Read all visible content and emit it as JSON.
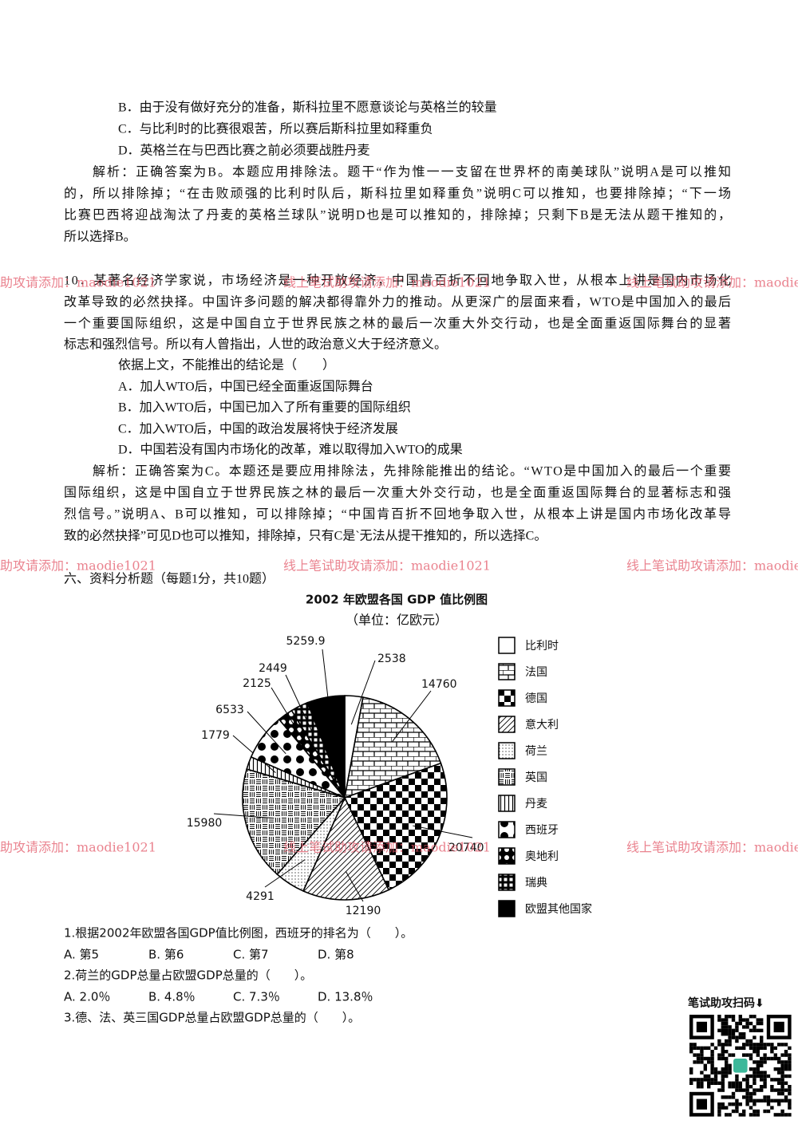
{
  "body": [
    "B．由于没有做好充分的准备，斯科拉里不愿意谈论与英格兰的较量",
    "C．与比利时的比赛很艰苦，所以赛后斯科拉里如释重负",
    "D．英格兰在与巴西比赛之前必须要战胜丹麦",
    "解析：正确答案为B。本题应用排除法。题干“作为惟一一支留在世界杯的南美球队”说明A是可以推知",
    "的，所以排除掉；“在击败顽强的比利时队后，斯科拉里如释重负”说明C可以推知，也要排除掉；“下一场",
    "比赛巴西将迎战淘汰了丹麦的英格兰球队”说明D也是可以推知的，排除掉；只剩下B是无法从题干推知的，",
    "所以选择B。",
    "10．某著名经济学家说，市场经济是一种开放经济，中国肯百折不回地争取入世，从根本上讲是国内市场化",
    "改革导致的必然抉择。中国许多问题的解决都得靠外力的推动。从更深广的层面来看，WTO是中国加入的最后",
    "一个重要国际组织，这是中国自立于世界民族之林的最后一次重大外交行动，也是全面重返国际舞台的显著",
    "标志和强烈信号。所以有人曾指出，人世的政治意义大于经济意义。",
    "依据上文，不能推出的结论是（　　）",
    "A．加人WTO后，中国已经全面重返国际舞台",
    "B．加入WTO后，中国已加入了所有重要的国际组织",
    "C．加入WTO后，中国的政治发展将快于经济发展",
    "D．中国若没有国内市场化的改革，难以取得加入WTO的成果",
    "解析：正确答案为C。本题还是要应用排除法，先排除能推出的结论。“WTO是中国加入的最后一个重要",
    "国际组织，这是中国自立于世界民族之林的最后一次重大外交行动，也是全面重返国际舞台的显著标志和强",
    "烈信号。”说明A、B可以推知，可以排除掉；“中国肯百折不回地争取入世，从根本上讲是国内市场化改革导",
    "致的必然抉择”可见D也可以推知，排除掉，只有C是`无法从提干推知的，所以选择C。",
    "六、资料分析题（每题1分，共10题）"
  ],
  "figure": {
    "type": "pie",
    "title": "2002 年欧盟各国 GDP 值比例图",
    "subtitle": "（单位：亿欧元）",
    "categories": [
      "比利时",
      "法国",
      "德国",
      "意大利",
      "荷兰",
      "英国",
      "丹麦",
      "西班牙",
      "奥地利",
      "瑞典",
      "欧盟其他国家"
    ],
    "values": [
      2538,
      14760,
      20740,
      12190,
      4291,
      15980,
      1779,
      6533,
      2125,
      2449,
      5259.9
    ]
  },
  "questions": [
    {
      "stem": "1.根据2002年欧盟各国GDP值比例图，西班牙的排名为（　　）。",
      "options": [
        "A. 第5",
        "B. 第6",
        "C. 第7",
        "D. 第8"
      ]
    },
    {
      "stem": "2.荷兰的GDP总量占欧盟GDP总量的（　　）。",
      "options": [
        "A. 2.0％",
        "B. 4.8％",
        "C. 7.3％",
        "D. 13.8％"
      ]
    },
    {
      "stem": "3.德、法、英三国GDP总量占欧盟GDP总量的（　　）。"
    }
  ],
  "watermark": "线上笔试助攻请添加：maodie1021",
  "qr_caption": "笔试助攻扫码⬇"
}
